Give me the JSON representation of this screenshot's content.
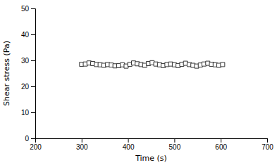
{
  "chart_data": {
    "type": "scatter",
    "xlabel": "Time (s)",
    "ylabel": "Shear stress (Pa)",
    "x": [
      300,
      308,
      316,
      324,
      332,
      340,
      348,
      356,
      364,
      372,
      380,
      388,
      396,
      404,
      412,
      420,
      428,
      436,
      444,
      452,
      460,
      468,
      476,
      484,
      492,
      500,
      508,
      516,
      524,
      532,
      540,
      548,
      556,
      564,
      572,
      580,
      588,
      596,
      604
    ],
    "values": [
      28.5,
      28.6,
      29.0,
      28.8,
      28.4,
      28.3,
      28.1,
      28.4,
      28.2,
      27.9,
      28.0,
      28.3,
      27.8,
      28.5,
      29.0,
      28.7,
      28.4,
      28.1,
      28.8,
      29.1,
      28.6,
      28.3,
      28.0,
      28.4,
      28.6,
      28.3,
      28.0,
      28.5,
      28.9,
      28.4,
      28.1,
      27.8,
      28.2,
      28.6,
      28.9,
      28.5,
      28.3,
      28.1,
      28.4
    ],
    "xlim": [
      200,
      700
    ],
    "ylim": [
      0,
      50
    ],
    "xticks": [
      200,
      300,
      400,
      500,
      600,
      700
    ],
    "yticks": [
      0,
      10,
      20,
      30,
      40,
      50
    ],
    "marker": "square",
    "line_style": "none",
    "color": "#333333",
    "grid": false
  }
}
